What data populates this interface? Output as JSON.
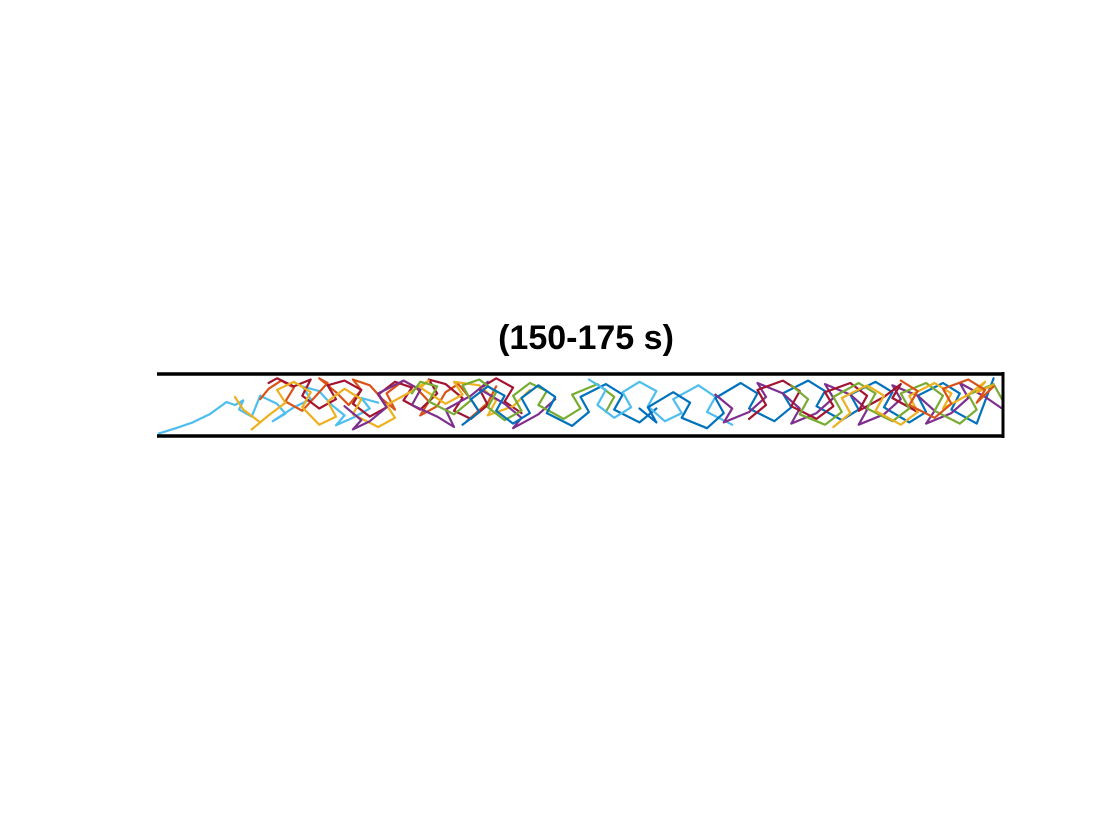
{
  "chart_data": {
    "type": "line",
    "title": "(150-175 s)",
    "xlabel": "",
    "ylabel": "",
    "xlim": [
      0,
      100
    ],
    "ylim": [
      0,
      10
    ],
    "grid": false,
    "legend": "none",
    "colors": [
      "#0072BD",
      "#D95319",
      "#EDB120",
      "#7E2F8E",
      "#77AC30",
      "#4DBEEE",
      "#A2142F"
    ],
    "series": [
      {
        "color": "#4DBEEE",
        "x": [
          0,
          2,
          4,
          6,
          8,
          9,
          10,
          9.5,
          11,
          12,
          14,
          15,
          13.5,
          16,
          18,
          17,
          19,
          20.5,
          22,
          21,
          23,
          25,
          24,
          26
        ],
        "y": [
          0.1,
          1.0,
          2.0,
          3.4,
          5.5,
          5.0,
          5.8,
          4.2,
          3.0,
          6.6,
          5.2,
          3.5,
          2.2,
          4.6,
          6.0,
          8.2,
          7.4,
          5.0,
          3.2,
          1.5,
          2.8,
          4.4,
          6.2,
          5.4
        ]
      },
      {
        "color": "#D95319",
        "x": [
          12,
          13,
          14.5,
          16,
          15,
          17,
          18.5,
          20,
          19,
          21,
          22.5,
          24,
          23,
          25,
          26.5,
          28,
          27,
          29,
          30.5,
          32,
          31,
          33,
          34,
          35.5,
          37,
          38,
          36.5,
          39,
          40
        ],
        "y": [
          6.0,
          7.8,
          9.2,
          8.0,
          5.6,
          4.0,
          6.4,
          8.8,
          9.6,
          7.2,
          5.0,
          7.6,
          9.4,
          8.4,
          6.0,
          4.2,
          7.0,
          9.2,
          8.0,
          5.6,
          3.2,
          4.8,
          7.2,
          8.6,
          6.0,
          3.8,
          2.2,
          5.4,
          8.2
        ]
      },
      {
        "color": "#A2142F",
        "x": [
          13,
          14,
          16,
          18,
          17,
          19,
          21,
          20,
          22,
          24,
          23,
          25,
          27,
          26,
          28,
          30,
          29,
          31,
          33,
          32,
          34,
          36,
          35,
          37,
          39,
          38,
          40,
          42,
          41,
          43
        ],
        "y": [
          8.8,
          9.6,
          8.2,
          9.4,
          6.6,
          4.4,
          6.0,
          8.4,
          9.2,
          7.6,
          5.2,
          3.0,
          4.6,
          6.8,
          9.0,
          8.0,
          5.8,
          4.2,
          7.0,
          9.4,
          8.6,
          6.2,
          4.0,
          2.6,
          5.0,
          7.8,
          9.6,
          8.0,
          5.6,
          3.6
        ]
      },
      {
        "color": "#EDB120",
        "x": [
          9,
          10,
          12,
          11,
          13,
          15,
          14,
          16,
          18,
          17,
          19,
          21,
          20,
          22,
          24,
          23,
          26,
          28,
          27,
          30,
          32,
          31,
          34,
          36,
          35,
          38,
          40,
          39,
          42,
          44
        ],
        "y": [
          6.4,
          4.2,
          2.0,
          0.8,
          3.2,
          5.4,
          7.6,
          9.0,
          7.2,
          4.6,
          1.6,
          3.0,
          5.6,
          7.8,
          6.0,
          3.4,
          1.2,
          2.8,
          5.0,
          7.4,
          9.2,
          8.0,
          5.2,
          6.8,
          9.0,
          8.4,
          5.8,
          3.2,
          4.8,
          7.6
        ]
      },
      {
        "color": "#7E2F8E",
        "x": [
          22,
          24,
          23,
          25,
          27,
          26,
          29,
          31,
          30,
          33,
          35,
          34,
          37,
          39,
          38,
          41,
          43,
          42,
          45,
          47
        ],
        "y": [
          4.8,
          2.4,
          0.8,
          2.2,
          4.6,
          7.0,
          9.2,
          7.6,
          5.0,
          3.0,
          1.2,
          4.2,
          6.6,
          9.0,
          7.8,
          5.2,
          2.8,
          1.0,
          3.4,
          6.0
        ]
      },
      {
        "color": "#77AC30",
        "x": [
          30,
          31,
          33,
          32,
          35,
          37,
          36,
          38,
          40,
          39,
          41,
          43,
          42,
          44,
          46,
          45,
          48,
          50,
          49,
          52,
          54,
          53
        ],
        "y": [
          7.0,
          9.0,
          8.2,
          5.6,
          3.4,
          5.8,
          8.4,
          9.4,
          7.2,
          4.6,
          2.4,
          4.0,
          6.6,
          8.8,
          7.4,
          5.0,
          2.6,
          4.4,
          6.8,
          8.6,
          6.4,
          3.8
        ]
      },
      {
        "color": "#0072BD",
        "x": [
          36,
          38,
          37,
          39,
          41,
          40,
          42,
          44,
          43,
          45,
          47,
          46,
          49,
          51,
          50,
          53,
          55,
          54,
          57,
          59
        ],
        "y": [
          1.6,
          3.8,
          6.0,
          8.2,
          6.6,
          4.0,
          1.8,
          3.6,
          6.2,
          8.4,
          6.4,
          3.6,
          1.4,
          3.8,
          6.4,
          8.6,
          6.8,
          4.2,
          2.0,
          4.4
        ]
      },
      {
        "color": "#4DBEEE",
        "x": [
          51,
          53,
          52,
          54,
          56,
          55,
          57,
          59,
          58,
          60,
          62,
          61,
          64,
          66,
          65,
          68
        ],
        "y": [
          9.4,
          7.6,
          5.0,
          2.8,
          4.6,
          7.2,
          9.0,
          7.4,
          4.8,
          2.2,
          3.6,
          6.0,
          8.4,
          6.4,
          3.8,
          1.6
        ]
      },
      {
        "color": "#0072BD",
        "x": [
          57,
          59,
          58,
          61,
          63,
          62,
          65,
          67,
          66,
          69,
          71,
          70,
          73,
          75,
          74,
          77,
          79,
          78,
          81,
          83,
          82,
          85,
          87,
          86,
          89,
          91,
          90,
          93,
          95,
          94,
          97,
          99
        ],
        "y": [
          4.4,
          2.0,
          4.6,
          7.2,
          5.4,
          2.8,
          1.0,
          3.6,
          6.2,
          8.8,
          7.0,
          4.4,
          2.2,
          4.6,
          7.0,
          9.2,
          7.4,
          4.8,
          2.4,
          4.2,
          6.8,
          9.0,
          7.2,
          4.6,
          2.0,
          3.8,
          6.6,
          8.8,
          7.0,
          4.2,
          1.8,
          9.6
        ]
      },
      {
        "color": "#7E2F8E",
        "x": [
          66,
          68,
          67,
          70,
          72,
          71,
          74,
          76,
          75,
          78,
          80,
          79,
          82,
          84,
          83,
          86,
          88,
          87,
          90,
          92,
          91,
          94,
          96,
          95,
          98,
          100
        ],
        "y": [
          6.8,
          4.4,
          2.0,
          3.8,
          6.4,
          8.8,
          7.0,
          4.4,
          1.8,
          3.6,
          6.2,
          8.6,
          6.8,
          4.2,
          1.6,
          3.4,
          6.0,
          8.4,
          6.6,
          4.0,
          1.8,
          3.6,
          6.2,
          8.8,
          6.4,
          4.4
        ]
      },
      {
        "color": "#A2142F",
        "x": [
          70,
          72,
          71,
          74,
          76,
          75,
          78,
          80,
          79,
          82,
          84,
          83,
          86,
          88,
          87,
          90
        ],
        "y": [
          2.6,
          5.0,
          7.6,
          9.2,
          7.4,
          4.8,
          2.6,
          4.8,
          7.2,
          8.8,
          6.6,
          4.0,
          6.4,
          8.6,
          6.2,
          3.8
        ]
      },
      {
        "color": "#77AC30",
        "x": [
          75,
          77,
          76,
          79,
          81,
          80,
          83,
          85,
          84,
          87,
          89,
          88,
          91,
          93,
          92,
          95,
          97,
          96,
          99,
          100
        ],
        "y": [
          8.4,
          6.0,
          3.4,
          1.6,
          3.8,
          6.4,
          8.8,
          7.0,
          4.4,
          2.2,
          4.4,
          7.0,
          8.8,
          6.6,
          4.0,
          1.8,
          4.2,
          6.8,
          8.6,
          6.0
        ]
      },
      {
        "color": "#EDB120",
        "x": [
          80,
          82,
          81,
          84,
          86,
          85,
          88,
          90,
          89,
          92,
          94,
          93,
          96,
          98,
          97,
          99
        ],
        "y": [
          1.2,
          3.6,
          6.2,
          8.4,
          6.6,
          4.0,
          1.6,
          3.8,
          6.6,
          8.8,
          7.0,
          4.4,
          6.8,
          9.0,
          7.2,
          8.4
        ]
      },
      {
        "color": "#D95319",
        "x": [
          88,
          90,
          89,
          92,
          94,
          93,
          96,
          98,
          97,
          99
        ],
        "y": [
          9.2,
          7.4,
          5.0,
          2.8,
          5.2,
          7.8,
          9.4,
          7.6,
          5.4,
          8.2
        ]
      }
    ]
  }
}
